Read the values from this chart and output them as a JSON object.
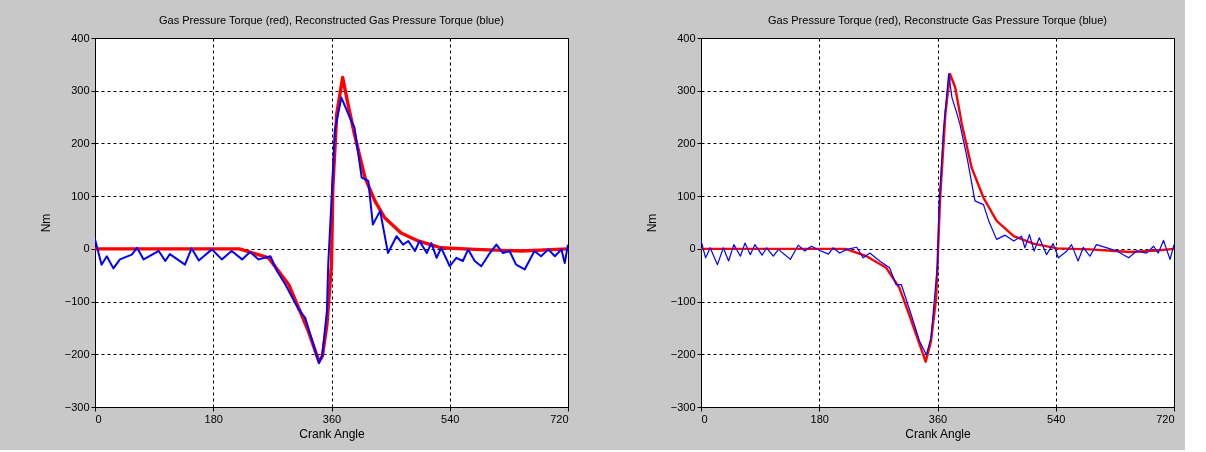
{
  "chart_data": [
    {
      "type": "line",
      "title": "Gas Pressure Torque (red), Reconstructed Gas Pressure Torque (blue)",
      "xlabel": "Crank Angle",
      "ylabel": "Nm",
      "xlim": [
        0,
        720
      ],
      "ylim": [
        -300,
        400
      ],
      "xticks": [
        0,
        180,
        360,
        540,
        720
      ],
      "yticks": [
        -300,
        -200,
        -100,
        0,
        100,
        200,
        300,
        400
      ],
      "grid": true,
      "marker": "none",
      "line_style": "solid",
      "series": [
        {
          "color": "#ff0000",
          "x": [
            0,
            100,
            220,
            264,
            295,
            310,
            325,
            341,
            346,
            353,
            360,
            362,
            368,
            377,
            385,
            395,
            411,
            426,
            441,
            466,
            492,
            527,
            578,
            649,
            720
          ],
          "values": [
            0,
            0,
            0,
            -17,
            -68,
            -112,
            -157,
            -214,
            -204,
            -144,
            -30,
            116,
            256,
            325,
            275,
            217,
            135,
            91,
            59,
            30,
            15,
            2,
            -1,
            -4,
            0
          ]
        },
        {
          "color": "#0000ff",
          "x": [
            0,
            10,
            18,
            28,
            38,
            56,
            64,
            74,
            97,
            107,
            114,
            137,
            147,
            158,
            178,
            193,
            208,
            224,
            236,
            249,
            267,
            277,
            290,
            310,
            320,
            341,
            346,
            353,
            355,
            361,
            365,
            375,
            388,
            395,
            406,
            416,
            423,
            434,
            446,
            459,
            469,
            477,
            487,
            494,
            505,
            512,
            520,
            527,
            540,
            550,
            560,
            568,
            578,
            588,
            601,
            611,
            621,
            631,
            641,
            654,
            669,
            679,
            690,
            700,
            710,
            715,
            720
          ],
          "values": [
            18,
            -30,
            -14,
            -37,
            -20,
            -11,
            2,
            -20,
            -4,
            -23,
            -10,
            -30,
            1,
            -22,
            -1,
            -20,
            -4,
            -20,
            -6,
            -20,
            -14,
            -42,
            -68,
            -115,
            -131,
            -217,
            -201,
            -119,
            -30,
            116,
            224,
            287,
            249,
            230,
            135,
            129,
            46,
            72,
            -8,
            24,
            8,
            15,
            -4,
            15,
            -8,
            11,
            -17,
            2,
            -33,
            -17,
            -23,
            -1,
            -23,
            -33,
            -8,
            8,
            -8,
            -4,
            -30,
            -39,
            -4,
            -14,
            -1,
            -14,
            -1,
            -27,
            8
          ]
        }
      ]
    },
    {
      "type": "line",
      "title": "Gas Pressure  Torque (red), Reconstructe Gas Pressure Torque (blue)",
      "xlabel": "Crank Angle",
      "ylabel": "Nm",
      "xlim": [
        0,
        720
      ],
      "ylim": [
        -300,
        400
      ],
      "xticks": [
        0,
        180,
        360,
        540,
        720
      ],
      "yticks": [
        -300,
        -200,
        -100,
        0,
        100,
        200,
        300,
        400
      ],
      "grid": true,
      "marker": "none",
      "line_style": "solid",
      "series": [
        {
          "color": "#ff0000",
          "x": [
            0,
            100,
            220,
            252,
            282,
            302,
            317,
            333,
            342,
            350,
            358,
            364,
            372,
            379,
            387,
            397,
            412,
            430,
            450,
            476,
            506,
            542,
            592,
            653,
            694,
            720
          ],
          "values": [
            0,
            0,
            0,
            -14,
            -36,
            -74,
            -125,
            -182,
            -214,
            -176,
            -93,
            97,
            256,
            332,
            306,
            237,
            154,
            97,
            53,
            24,
            10,
            1,
            -1,
            -6,
            -3,
            0
          ]
        },
        {
          "color": "#0000ff",
          "x": [
            0,
            7,
            14,
            25,
            34,
            42,
            50,
            60,
            67,
            75,
            82,
            93,
            100,
            110,
            118,
            136,
            148,
            158,
            168,
            181,
            194,
            201,
            211,
            222,
            237,
            247,
            257,
            272,
            287,
            297,
            305,
            320,
            333,
            343,
            350,
            360,
            362,
            369,
            377,
            382,
            389,
            394,
            405,
            417,
            430,
            438,
            450,
            463,
            476,
            488,
            493,
            500,
            507,
            515,
            526,
            536,
            544,
            557,
            564,
            574,
            582,
            592,
            602,
            618,
            633,
            651,
            663,
            678,
            689,
            696,
            704,
            714,
            720
          ],
          "values": [
            16,
            -17,
            2,
            -30,
            2,
            -23,
            8,
            -14,
            11,
            -11,
            8,
            -12,
            2,
            -14,
            -1,
            -20,
            7,
            -4,
            5,
            -3,
            -10,
            2,
            -8,
            -1,
            3,
            -17,
            -8,
            -23,
            -36,
            -68,
            -68,
            -125,
            -176,
            -201,
            -169,
            -30,
            72,
            224,
            332,
            287,
            259,
            237,
            173,
            91,
            84,
            53,
            18,
            26,
            15,
            24,
            2,
            27,
            -4,
            21,
            -11,
            10,
            -17,
            -4,
            8,
            -23,
            3,
            -14,
            8,
            2,
            -4,
            -17,
            -4,
            -8,
            5,
            -8,
            16,
            -20,
            8
          ]
        }
      ]
    }
  ]
}
